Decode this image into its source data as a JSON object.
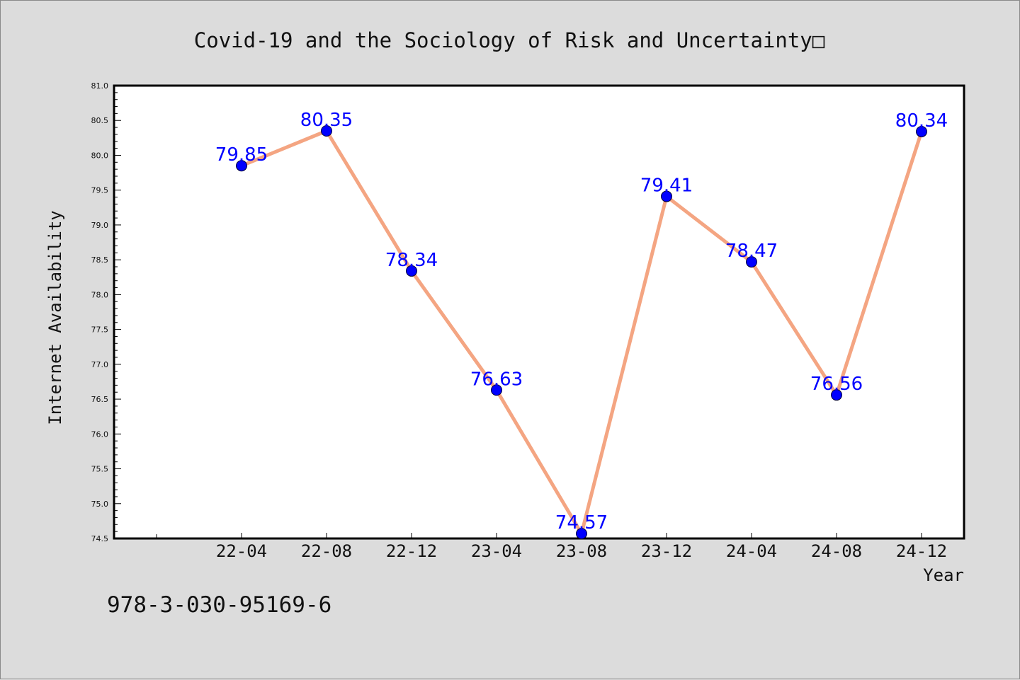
{
  "chart_data": {
    "type": "line",
    "title": "Covid-19 and the Sociology of Risk and Uncertainty□",
    "xlabel": "Year",
    "ylabel": "Internet Availability",
    "categories": [
      "22-04",
      "22-08",
      "22-12",
      "23-04",
      "23-08",
      "23-12",
      "24-04",
      "24-08",
      "24-12"
    ],
    "series": [
      {
        "values": [
          79.85,
          80.35,
          78.34,
          76.63,
          74.57,
          79.41,
          78.47,
          76.56,
          80.34
        ]
      }
    ],
    "data_labels": [
      "79.85",
      "80.35",
      "78.34",
      "76.63",
      "74.57",
      "79.41",
      "78.47",
      "76.56",
      "80.34"
    ],
    "ylim": [
      74.5,
      81.0
    ],
    "y_ticks": [
      "74.5",
      "75.0",
      "75.5",
      "76.0",
      "76.5",
      "77.0",
      "77.5",
      "78.0",
      "78.5",
      "79.0",
      "79.5",
      "80.0",
      "80.5",
      "81.0"
    ],
    "grid": false,
    "line_color": "#f4a582",
    "marker_color": "#0000ff",
    "label_color": "#0000ff",
    "plot_background": "#ffffff",
    "figure_background": "#dcdcdc"
  },
  "footer": {
    "text": "978-3-030-95169-6"
  }
}
